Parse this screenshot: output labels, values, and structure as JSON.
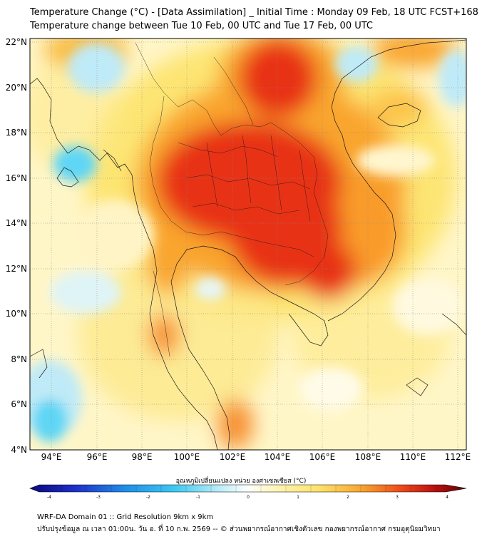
{
  "title_line1": "Temperature Change (°C) - [Data Assimilation] _ Initial Time : Monday 09 Feb, 18 UTC FCST+168",
  "title_line2": "Temperature change between Tue 10 Feb, 00 UTC and Tue 17 Feb, 00 UTC",
  "lat_labels": [
    "22°N",
    "20°N",
    "18°N",
    "16°N",
    "14°N",
    "12°N",
    "10°N",
    "8°N",
    "6°N",
    "4°N"
  ],
  "lon_labels": [
    "94°E",
    "96°E",
    "98°E",
    "100°E",
    "102°E",
    "104°E",
    "106°E",
    "108°E",
    "110°E",
    "112°E"
  ],
  "colorbar": {
    "title": "อุณหภูมิเปลี่ยนแปลง หน่วย องศาเซลเซียส (°C)",
    "ticks": [
      "-4",
      "-3",
      "-2",
      "-1",
      "0",
      "1",
      "2",
      "3",
      "4"
    ],
    "range": [
      -4,
      4
    ],
    "colors": [
      "#0a0a7a",
      "#1e2dc8",
      "#1f6fe0",
      "#27b0f0",
      "#5fd6f5",
      "#b6ecf7",
      "#ffffff",
      "#fff3b0",
      "#fde36a",
      "#f9b93a",
      "#f57a1c",
      "#e6301a",
      "#b80f0f",
      "#6e0606"
    ]
  },
  "footer_line1": "WRF-DA Domain 01 :: Grid Resolution 9km x 9km",
  "footer_line2": "ปรับปรุงข้อมูล ณ เวลา 01:00น. วัน อ. ที่ 10 ก.พ. 2569 -- © ส่วนพยากรณ์อากาศเชิงตัวเลข กองพยากรณ์อากาศ กรมอุตุนิยมวิทยา"
}
